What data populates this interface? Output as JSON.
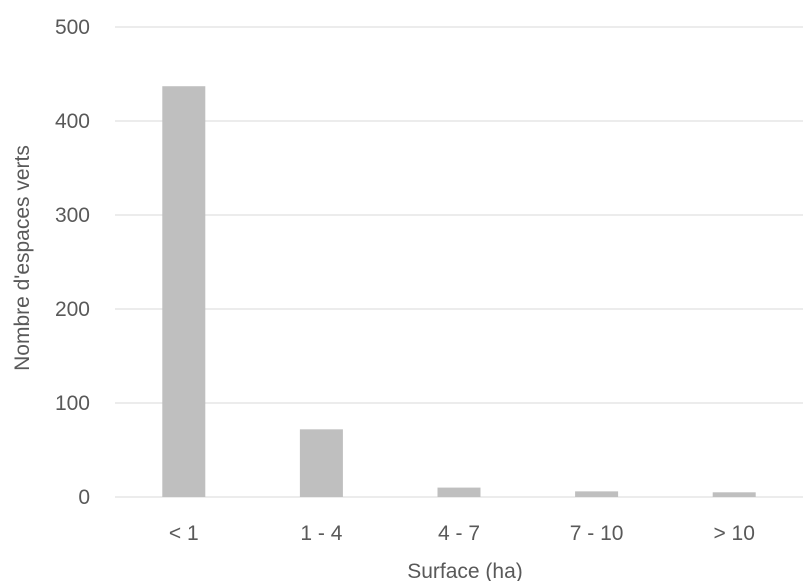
{
  "chart_data": {
    "type": "bar",
    "title": "",
    "xlabel": "Surface (ha)",
    "ylabel": "Nombre d'espaces verts",
    "categories": [
      "< 1",
      "1 - 4",
      "4 - 7",
      "7 - 10",
      "> 10"
    ],
    "values": [
      437,
      72,
      10,
      6,
      5
    ],
    "ylim": [
      0,
      500
    ],
    "yticks": [
      "0",
      "100",
      "200",
      "300",
      "400",
      "500"
    ],
    "grid": true,
    "legend": "none",
    "colors": {
      "bar": "#bfbfbf",
      "grid": "#d9d9d9",
      "text": "#595959"
    }
  }
}
